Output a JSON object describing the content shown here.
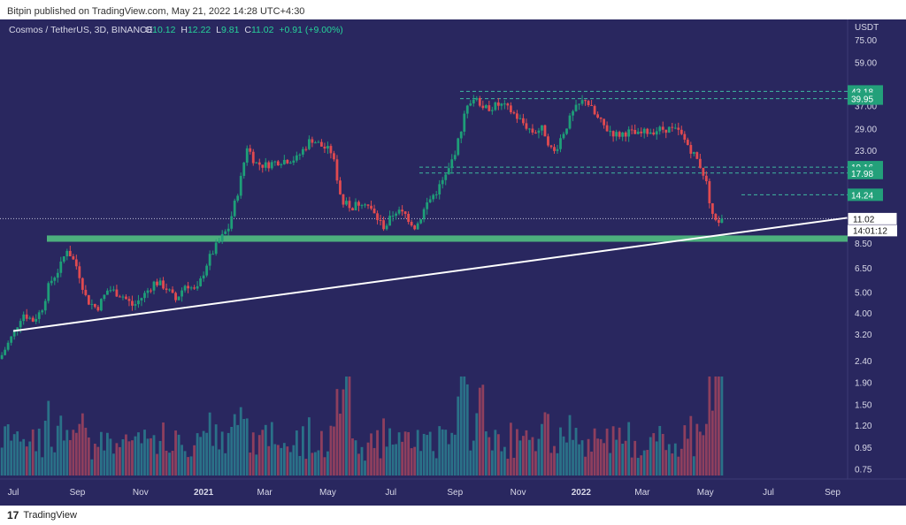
{
  "header": {
    "published": "Bitpin published on TradingView.com, May 21, 2022 14:28 UTC+4:30"
  },
  "footer": {
    "logo_glyph": "17",
    "brand": "TradingView"
  },
  "colors": {
    "background": "#29275f",
    "up": "#1e9e78",
    "down": "#e04a50",
    "support_zone": "#4caf7d",
    "trendline": "#ffffff"
  },
  "chart_data": {
    "type": "candlestick",
    "symbol_line": {
      "name": "Cosmos / TetherUS, 3D, BINANCE",
      "o_label": "O",
      "o": "10.12",
      "h_label": "H",
      "h": "12.22",
      "l_label": "L",
      "l": "9.81",
      "c_label": "C",
      "c": "11.02",
      "change": "+0.91 (+9.00%)"
    },
    "price_axis_unit": "USDT",
    "y_scale": "log",
    "ylim": [
      0.7,
      85
    ],
    "y_ticks": [
      "75.00",
      "59.00",
      "37.00",
      "29.00",
      "23.00",
      "8.50",
      "6.50",
      "5.00",
      "4.00",
      "3.20",
      "2.40",
      "1.90",
      "1.50",
      "1.20",
      "0.95",
      "0.75"
    ],
    "x_ticks": [
      {
        "label": "Jul",
        "date": "2020-07-01",
        "bold": false
      },
      {
        "label": "Sep",
        "date": "2020-09-01",
        "bold": false
      },
      {
        "label": "Nov",
        "date": "2020-11-01",
        "bold": false
      },
      {
        "label": "2021",
        "date": "2021-01-01",
        "bold": true
      },
      {
        "label": "Mar",
        "date": "2021-03-01",
        "bold": false
      },
      {
        "label": "May",
        "date": "2021-05-01",
        "bold": false
      },
      {
        "label": "Jul",
        "date": "2021-07-01",
        "bold": false
      },
      {
        "label": "Sep",
        "date": "2021-09-01",
        "bold": false
      },
      {
        "label": "Nov",
        "date": "2021-11-01",
        "bold": false
      },
      {
        "label": "2022",
        "date": "2022-01-01",
        "bold": true
      },
      {
        "label": "Mar",
        "date": "2022-03-01",
        "bold": false
      },
      {
        "label": "May",
        "date": "2022-05-01",
        "bold": false
      },
      {
        "label": "Jul",
        "date": "2022-07-01",
        "bold": false
      },
      {
        "label": "Sep",
        "date": "2022-09-01",
        "bold": false
      }
    ],
    "price_path": [
      [
        "2020-06-20",
        2.55
      ],
      [
        "2020-07-01",
        3.2
      ],
      [
        "2020-07-10",
        4.0
      ],
      [
        "2020-07-20",
        3.7
      ],
      [
        "2020-07-28",
        4.1
      ],
      [
        "2020-08-05",
        5.5
      ],
      [
        "2020-08-15",
        6.5
      ],
      [
        "2020-08-22",
        8.0
      ],
      [
        "2020-09-01",
        6.5
      ],
      [
        "2020-09-10",
        4.6
      ],
      [
        "2020-09-20",
        4.2
      ],
      [
        "2020-10-01",
        5.2
      ],
      [
        "2020-10-15",
        4.8
      ],
      [
        "2020-10-25",
        4.3
      ],
      [
        "2020-11-05",
        4.9
      ],
      [
        "2020-11-15",
        5.6
      ],
      [
        "2020-11-25",
        5.3
      ],
      [
        "2020-12-05",
        4.6
      ],
      [
        "2020-12-15",
        5.5
      ],
      [
        "2020-12-25",
        5.0
      ],
      [
        "2021-01-05",
        7.0
      ],
      [
        "2021-01-15",
        8.5
      ],
      [
        "2021-01-25",
        10.0
      ],
      [
        "2021-02-05",
        16.0
      ],
      [
        "2021-02-12",
        24.0
      ],
      [
        "2021-02-20",
        20.0
      ],
      [
        "2021-03-01",
        19.5
      ],
      [
        "2021-03-15",
        20.5
      ],
      [
        "2021-04-01",
        21.0
      ],
      [
        "2021-04-15",
        26.0
      ],
      [
        "2021-04-25",
        24.0
      ],
      [
        "2021-05-05",
        22.5
      ],
      [
        "2021-05-15",
        13.0
      ],
      [
        "2021-05-25",
        12.5
      ],
      [
        "2021-06-05",
        13.5
      ],
      [
        "2021-06-15",
        11.5
      ],
      [
        "2021-06-25",
        10.0
      ],
      [
        "2021-07-05",
        12.0
      ],
      [
        "2021-07-15",
        11.5
      ],
      [
        "2021-07-25",
        10.0
      ],
      [
        "2021-08-05",
        13.0
      ],
      [
        "2021-08-15",
        15.0
      ],
      [
        "2021-08-25",
        18.0
      ],
      [
        "2021-09-05",
        26.0
      ],
      [
        "2021-09-12",
        38.0
      ],
      [
        "2021-09-20",
        40.0
      ],
      [
        "2021-10-01",
        36.0
      ],
      [
        "2021-10-15",
        37.5
      ],
      [
        "2021-10-25",
        35.0
      ],
      [
        "2021-11-05",
        31.0
      ],
      [
        "2021-11-15",
        28.0
      ],
      [
        "2021-11-25",
        29.0
      ],
      [
        "2021-12-05",
        22.0
      ],
      [
        "2021-12-15",
        28.0
      ],
      [
        "2021-12-25",
        35.0
      ],
      [
        "2022-01-05",
        40.0
      ],
      [
        "2022-01-15",
        33.0
      ],
      [
        "2022-01-25",
        29.0
      ],
      [
        "2022-02-05",
        27.0
      ],
      [
        "2022-02-15",
        28.0
      ],
      [
        "2022-02-25",
        27.0
      ],
      [
        "2022-03-05",
        28.0
      ],
      [
        "2022-03-15",
        28.5
      ],
      [
        "2022-03-25",
        29.0
      ],
      [
        "2022-04-05",
        28.0
      ],
      [
        "2022-04-15",
        24.0
      ],
      [
        "2022-04-25",
        20.0
      ],
      [
        "2022-05-01",
        17.0
      ],
      [
        "2022-05-07",
        12.0
      ],
      [
        "2022-05-13",
        10.0
      ],
      [
        "2022-05-18",
        11.02
      ]
    ],
    "support_zone": {
      "low": 8.6,
      "high": 9.2
    },
    "trendline": [
      [
        "2020-07-01",
        3.3
      ],
      [
        "2022-09-20",
        11.2
      ]
    ],
    "resistance_lines": [
      43.18,
      39.95,
      19.16,
      17.98,
      14.24
    ],
    "price_labels": [
      {
        "text": "43.18",
        "value": 43.18,
        "kind": "green"
      },
      {
        "text": "39.95",
        "value": 39.95,
        "kind": "green"
      },
      {
        "text": "19.16",
        "value": 19.16,
        "kind": "green"
      },
      {
        "text": "17.98",
        "value": 17.98,
        "kind": "green"
      },
      {
        "text": "14.24",
        "value": 14.24,
        "kind": "green"
      },
      {
        "text": "11.02",
        "value": 11.02,
        "kind": "last"
      }
    ],
    "countdown": "14:01:12",
    "volume_spike_dates": [
      "2021-05-20",
      "2021-09-10",
      "2021-09-25",
      "2022-05-13"
    ]
  }
}
